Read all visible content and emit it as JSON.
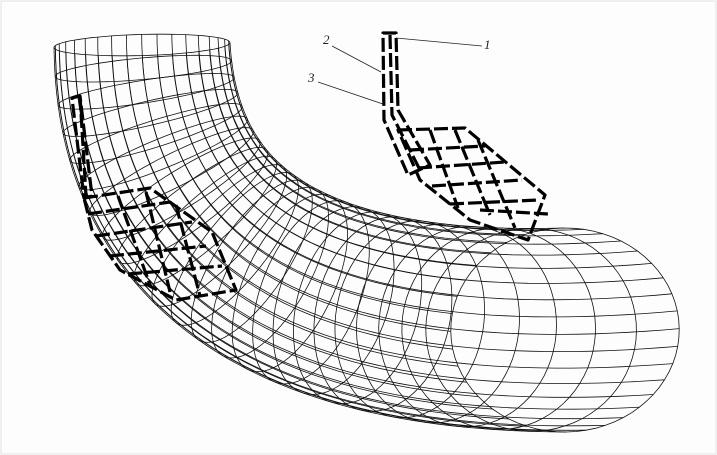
{
  "labels": [
    "1",
    "2",
    "3"
  ]
}
